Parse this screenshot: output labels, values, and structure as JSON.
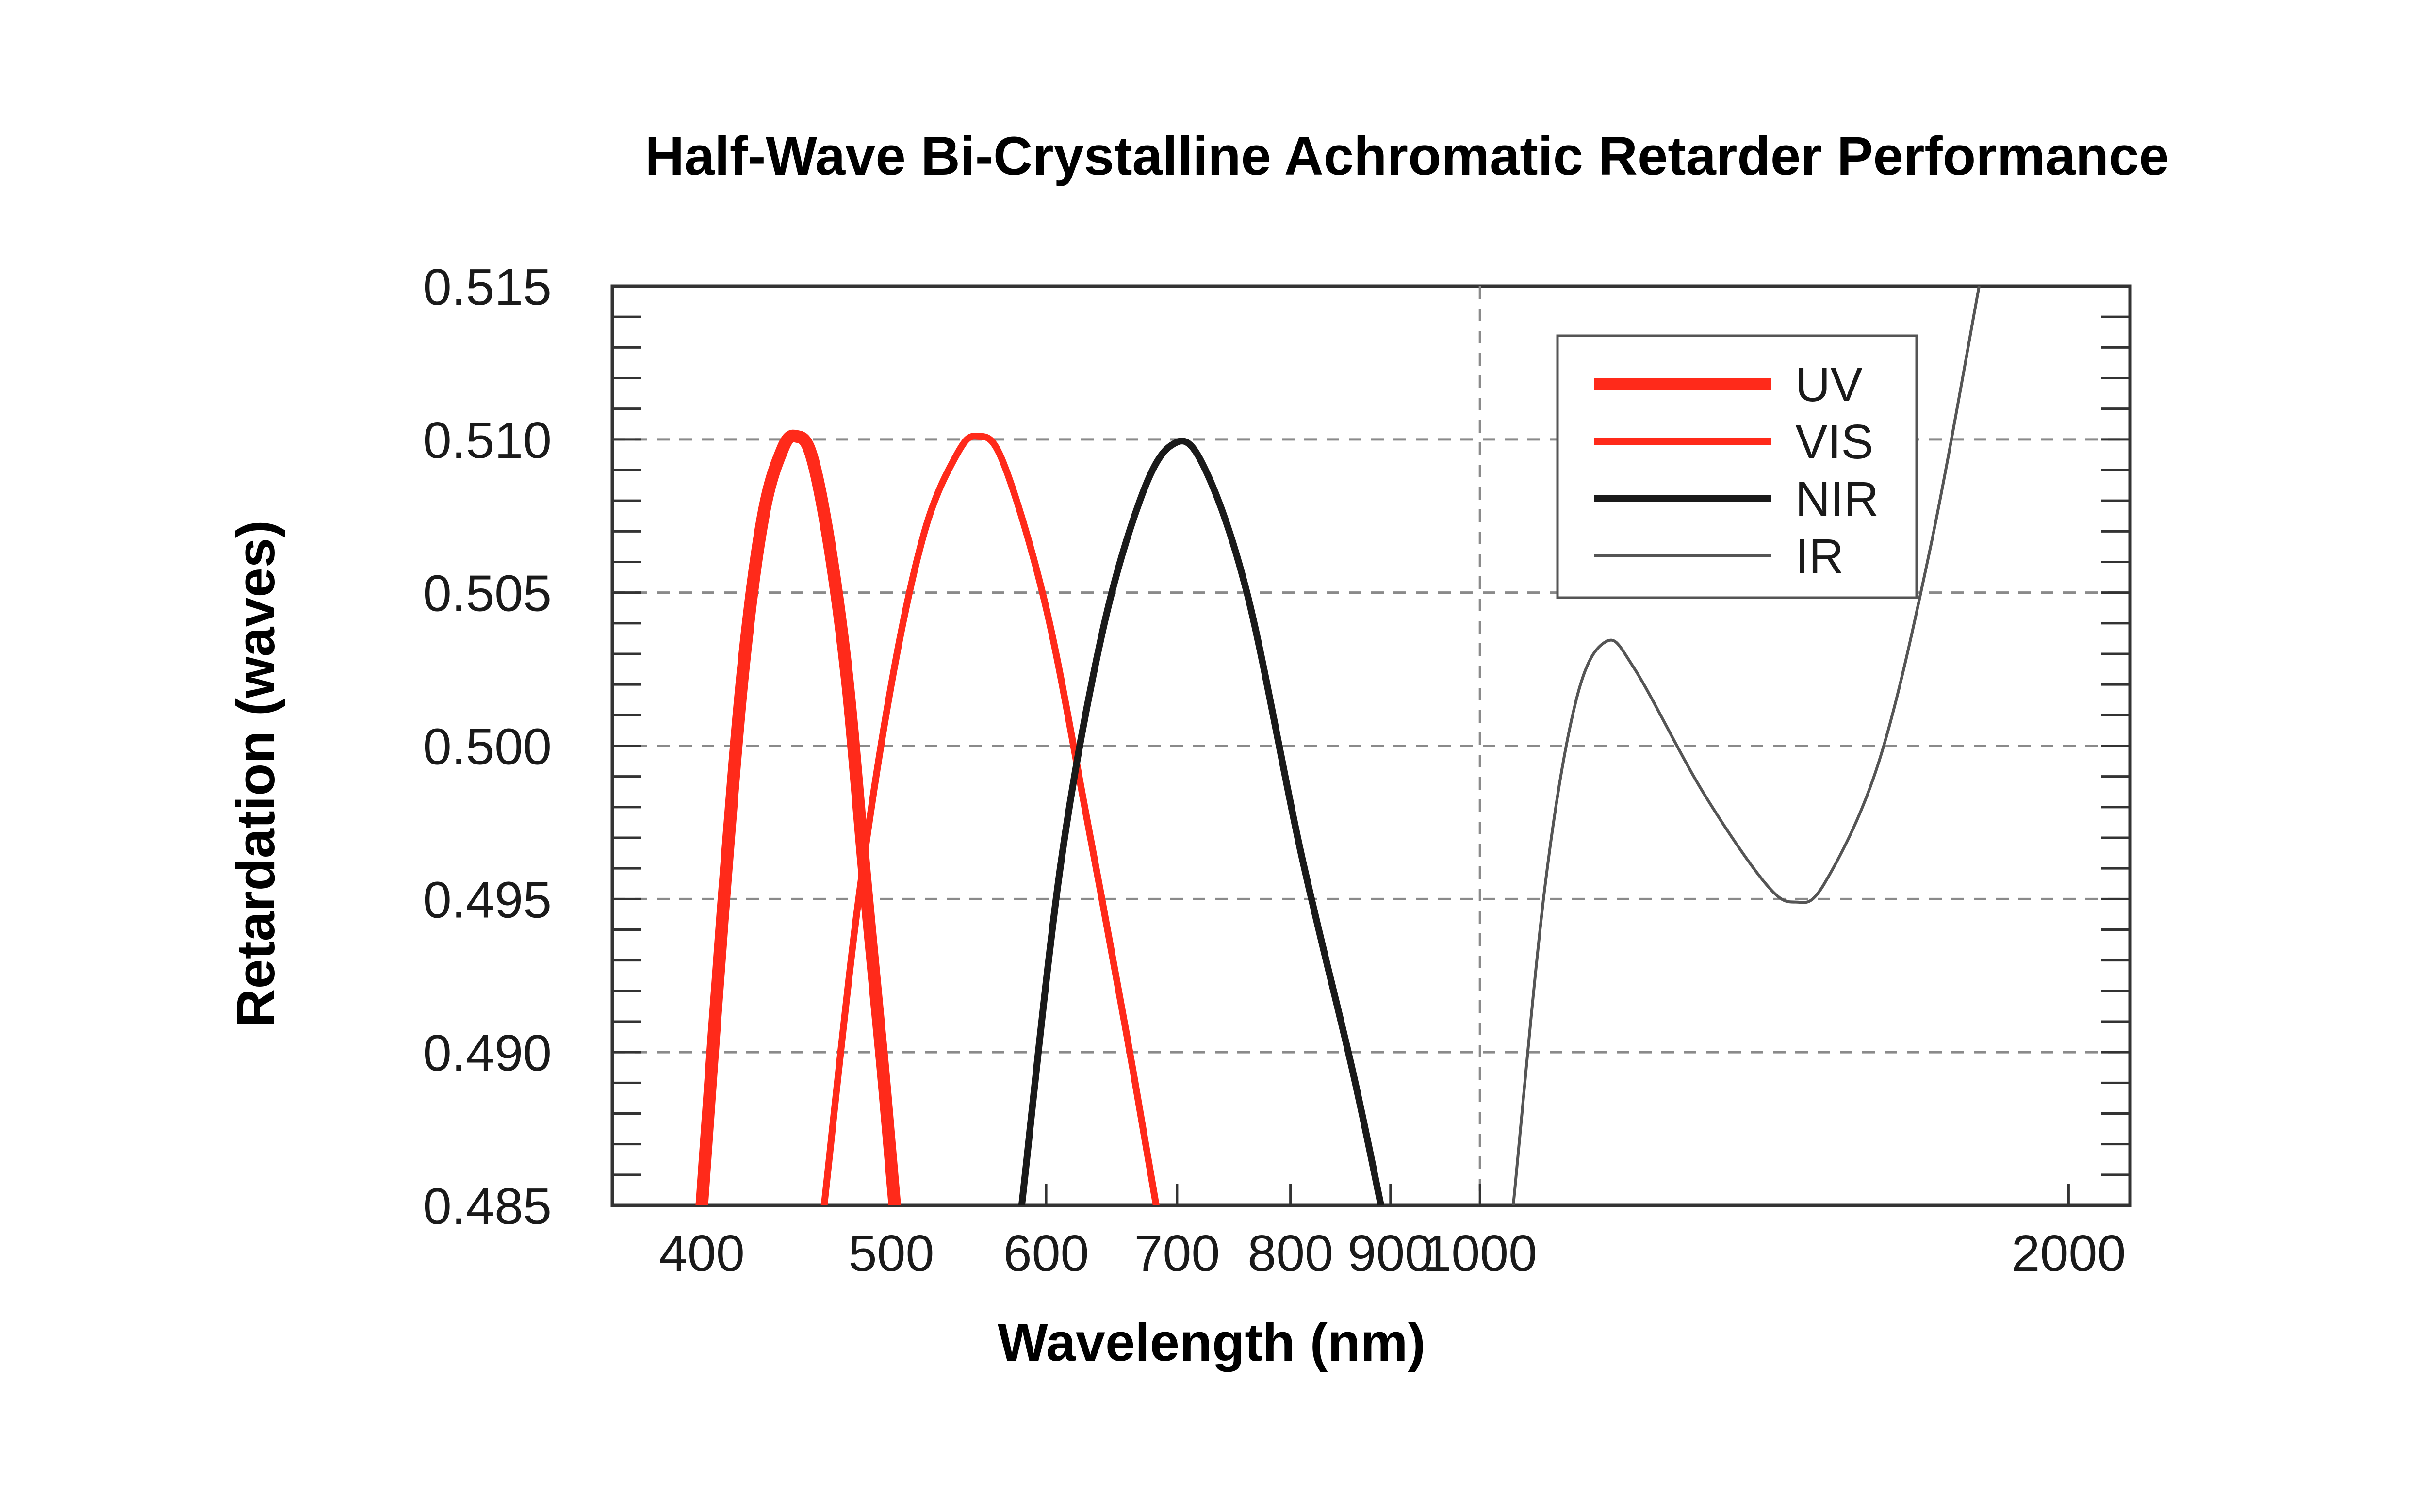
{
  "chart_data": {
    "type": "line",
    "title": "Half-Wave Bi-Crystalline Achromatic Retarder Performance",
    "xlabel": "Wavelength (nm)",
    "ylabel": "Retardation (waves)",
    "x_scale": "log",
    "xlim": [
      360,
      2150
    ],
    "ylim": [
      0.485,
      0.515
    ],
    "x_ticks": [
      400,
      500,
      600,
      700,
      800,
      900,
      1000,
      2000
    ],
    "x_tick_labels": [
      "400",
      "500",
      "600",
      "700",
      "800",
      "900",
      "1000",
      "2000"
    ],
    "y_ticks": [
      0.485,
      0.49,
      0.495,
      0.5,
      0.505,
      0.51,
      0.515
    ],
    "y_tick_labels": [
      "0.485",
      "0.490",
      "0.495",
      "0.500",
      "0.505",
      "0.510",
      "0.515"
    ],
    "y_gridlines": [
      0.49,
      0.495,
      0.5,
      0.505,
      0.51
    ],
    "x_gridlines": [
      1000
    ],
    "grid": "dashed",
    "legend_position": "top-right",
    "series": [
      {
        "name": "UV",
        "color": "#ff2a1a",
        "weight": "thick",
        "points": [
          [
            400,
            0.485
          ],
          [
            410,
            0.4945
          ],
          [
            420,
            0.5025
          ],
          [
            430,
            0.5075
          ],
          [
            440,
            0.5097
          ],
          [
            447,
            0.5101
          ],
          [
            455,
            0.5095
          ],
          [
            465,
            0.5065
          ],
          [
            475,
            0.502
          ],
          [
            485,
            0.4955
          ],
          [
            495,
            0.4895
          ],
          [
            502,
            0.485
          ]
        ]
      },
      {
        "name": "VIS",
        "color": "#ff2a1a",
        "weight": "medium",
        "points": [
          [
            462,
            0.485
          ],
          [
            480,
            0.4945
          ],
          [
            500,
            0.502
          ],
          [
            520,
            0.507
          ],
          [
            540,
            0.5095
          ],
          [
            553,
            0.5101
          ],
          [
            570,
            0.5093
          ],
          [
            600,
            0.5045
          ],
          [
            630,
            0.4975
          ],
          [
            660,
            0.4905
          ],
          [
            683,
            0.485
          ]
        ]
      },
      {
        "name": "NIR",
        "color": "#1a1a1a",
        "weight": "medium",
        "points": [
          [
            583,
            0.485
          ],
          [
            610,
            0.496
          ],
          [
            640,
            0.5035
          ],
          [
            670,
            0.508
          ],
          [
            695,
            0.5098
          ],
          [
            720,
            0.5093
          ],
          [
            760,
            0.505
          ],
          [
            810,
            0.4965
          ],
          [
            860,
            0.4895
          ],
          [
            890,
            0.485
          ]
        ]
      },
      {
        "name": "IR",
        "color": "#555555",
        "weight": "thin",
        "points": [
          [
            1040,
            0.485
          ],
          [
            1080,
            0.4955
          ],
          [
            1120,
            0.5015
          ],
          [
            1160,
            0.5034
          ],
          [
            1200,
            0.5025
          ],
          [
            1300,
            0.4985
          ],
          [
            1400,
            0.4955
          ],
          [
            1450,
            0.4949
          ],
          [
            1500,
            0.4955
          ],
          [
            1600,
            0.4995
          ],
          [
            1700,
            0.5065
          ],
          [
            1800,
            0.515
          ]
        ]
      }
    ]
  }
}
